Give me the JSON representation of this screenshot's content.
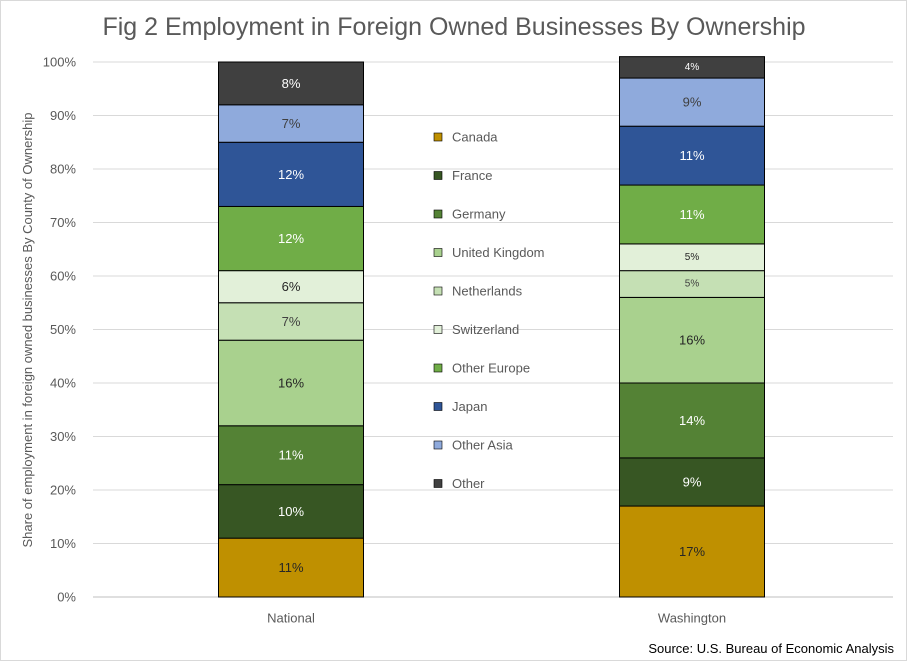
{
  "chart_data": {
    "type": "bar",
    "stacked": true,
    "orientation": "vertical",
    "title": "Fig 2 Employment in Foreign Owned Businesses By Ownership",
    "ylabel": "Share of employment in foreign owned businesses By County of Ownership",
    "xlabel": "",
    "categories": [
      "National",
      "Washington"
    ],
    "ylim": [
      0,
      100
    ],
    "yticks": [
      "0%",
      "10%",
      "20%",
      "30%",
      "40%",
      "50%",
      "60%",
      "70%",
      "80%",
      "90%",
      "100%"
    ],
    "grid": true,
    "legend_position": "center",
    "series": [
      {
        "name": "Canada",
        "color": "#bf9000",
        "label_color": "#262626",
        "values": [
          11,
          17
        ],
        "labels": [
          "11%",
          "17%"
        ]
      },
      {
        "name": "France",
        "color": "#375623",
        "label_color": "#ffffff",
        "values": [
          10,
          9
        ],
        "labels": [
          "10%",
          "9%"
        ]
      },
      {
        "name": "Germany",
        "color": "#548235",
        "label_color": "#ffffff",
        "values": [
          11,
          14
        ],
        "labels": [
          "11%",
          "14%"
        ]
      },
      {
        "name": "United Kingdom",
        "color": "#a9d18e",
        "label_color": "#262626",
        "values": [
          16,
          16
        ],
        "labels": [
          "16%",
          "16%"
        ]
      },
      {
        "name": "Netherlands",
        "color": "#c5e0b4",
        "label_color": "#404040",
        "values": [
          7,
          5
        ],
        "labels": [
          "7%",
          "5%"
        ]
      },
      {
        "name": "Switzerland",
        "color": "#e2f0d9",
        "label_color": "#262626",
        "values": [
          6,
          5
        ],
        "labels": [
          "6%",
          "5%"
        ]
      },
      {
        "name": "Other Europe",
        "color": "#70ad47",
        "label_color": "#ffffff",
        "values": [
          12,
          11
        ],
        "labels": [
          "12%",
          "11%"
        ]
      },
      {
        "name": "Japan",
        "color": "#2f5597",
        "label_color": "#ffffff",
        "values": [
          12,
          11
        ],
        "labels": [
          "12%",
          "11%"
        ]
      },
      {
        "name": "Other Asia",
        "color": "#8faadc",
        "label_color": "#404040",
        "values": [
          7,
          9
        ],
        "labels": [
          "7%",
          "9%"
        ]
      },
      {
        "name": "Other",
        "color": "#404040",
        "label_color": "#ffffff",
        "values": [
          8,
          4
        ],
        "labels": [
          "8%",
          "4%"
        ]
      }
    ],
    "source": "Source: U.S. Bureau of Economic Analysis"
  }
}
